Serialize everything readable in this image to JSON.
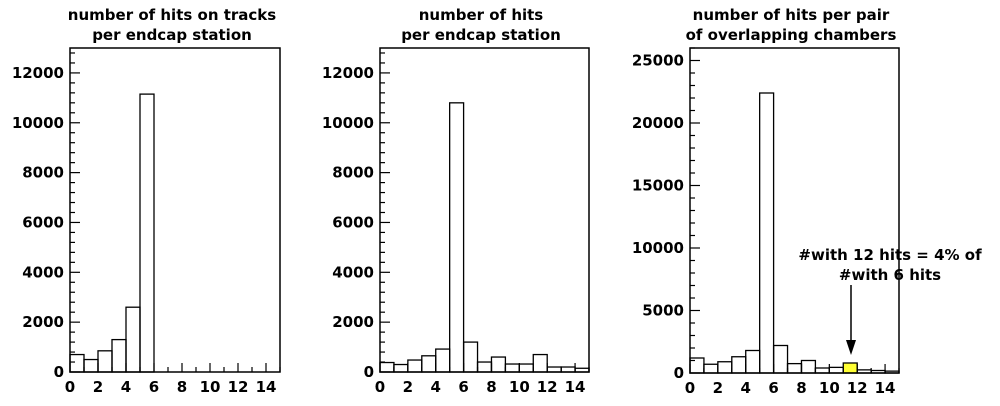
{
  "chart_data": [
    {
      "type": "bar",
      "title": [
        "number of hits on tracks",
        "per endcap station"
      ],
      "xlabel": "",
      "ylabel": "",
      "xlim": [
        0,
        15
      ],
      "ylim": [
        0,
        13000
      ],
      "x_ticks": [
        "0",
        "2",
        "4",
        "6",
        "8",
        "10",
        "12",
        "14"
      ],
      "y_ticks": [
        "0",
        "2000",
        "4000",
        "6000",
        "8000",
        "10000",
        "12000"
      ],
      "bins": [
        "1",
        "2",
        "3",
        "4",
        "5",
        "6",
        "7",
        "8",
        "9",
        "10",
        "11",
        "12",
        "13",
        "14",
        "15"
      ],
      "values": [
        700,
        500,
        850,
        1300,
        2600,
        11150,
        0,
        0,
        0,
        0,
        0,
        0,
        0,
        0,
        0
      ]
    },
    {
      "type": "bar",
      "title": [
        "number of hits",
        "per endcap station"
      ],
      "xlabel": "",
      "ylabel": "",
      "xlim": [
        0,
        15
      ],
      "ylim": [
        0,
        13000
      ],
      "x_ticks": [
        "0",
        "2",
        "4",
        "6",
        "8",
        "10",
        "12",
        "14"
      ],
      "y_ticks": [
        "0",
        "2000",
        "4000",
        "6000",
        "8000",
        "10000",
        "12000"
      ],
      "bins": [
        "1",
        "2",
        "3",
        "4",
        "5",
        "6",
        "7",
        "8",
        "9",
        "10",
        "11",
        "12",
        "13",
        "14",
        "15"
      ],
      "values": [
        380,
        300,
        480,
        650,
        920,
        10800,
        1200,
        400,
        600,
        320,
        320,
        700,
        200,
        200,
        150
      ]
    },
    {
      "type": "bar",
      "title": [
        "number of hits per pair",
        "of overlapping chambers"
      ],
      "xlabel": "",
      "ylabel": "",
      "xlim": [
        0,
        15
      ],
      "ylim": [
        0,
        26000
      ],
      "x_ticks": [
        "0",
        "2",
        "4",
        "6",
        "8",
        "10",
        "12",
        "14"
      ],
      "y_ticks": [
        "0",
        "5000",
        "10000",
        "15000",
        "20000",
        "25000"
      ],
      "bins": [
        "1",
        "2",
        "3",
        "4",
        "5",
        "6",
        "7",
        "8",
        "9",
        "10",
        "11",
        "12",
        "13",
        "14",
        "15"
      ],
      "values": [
        1200,
        700,
        900,
        1300,
        1800,
        22400,
        2200,
        750,
        1000,
        400,
        450,
        800,
        250,
        200,
        150
      ],
      "highlight_bin": 12,
      "highlight_color": "#ffff33",
      "annotation": [
        "#with 12 hits = 4% of",
        "#with 6 hits"
      ]
    }
  ]
}
